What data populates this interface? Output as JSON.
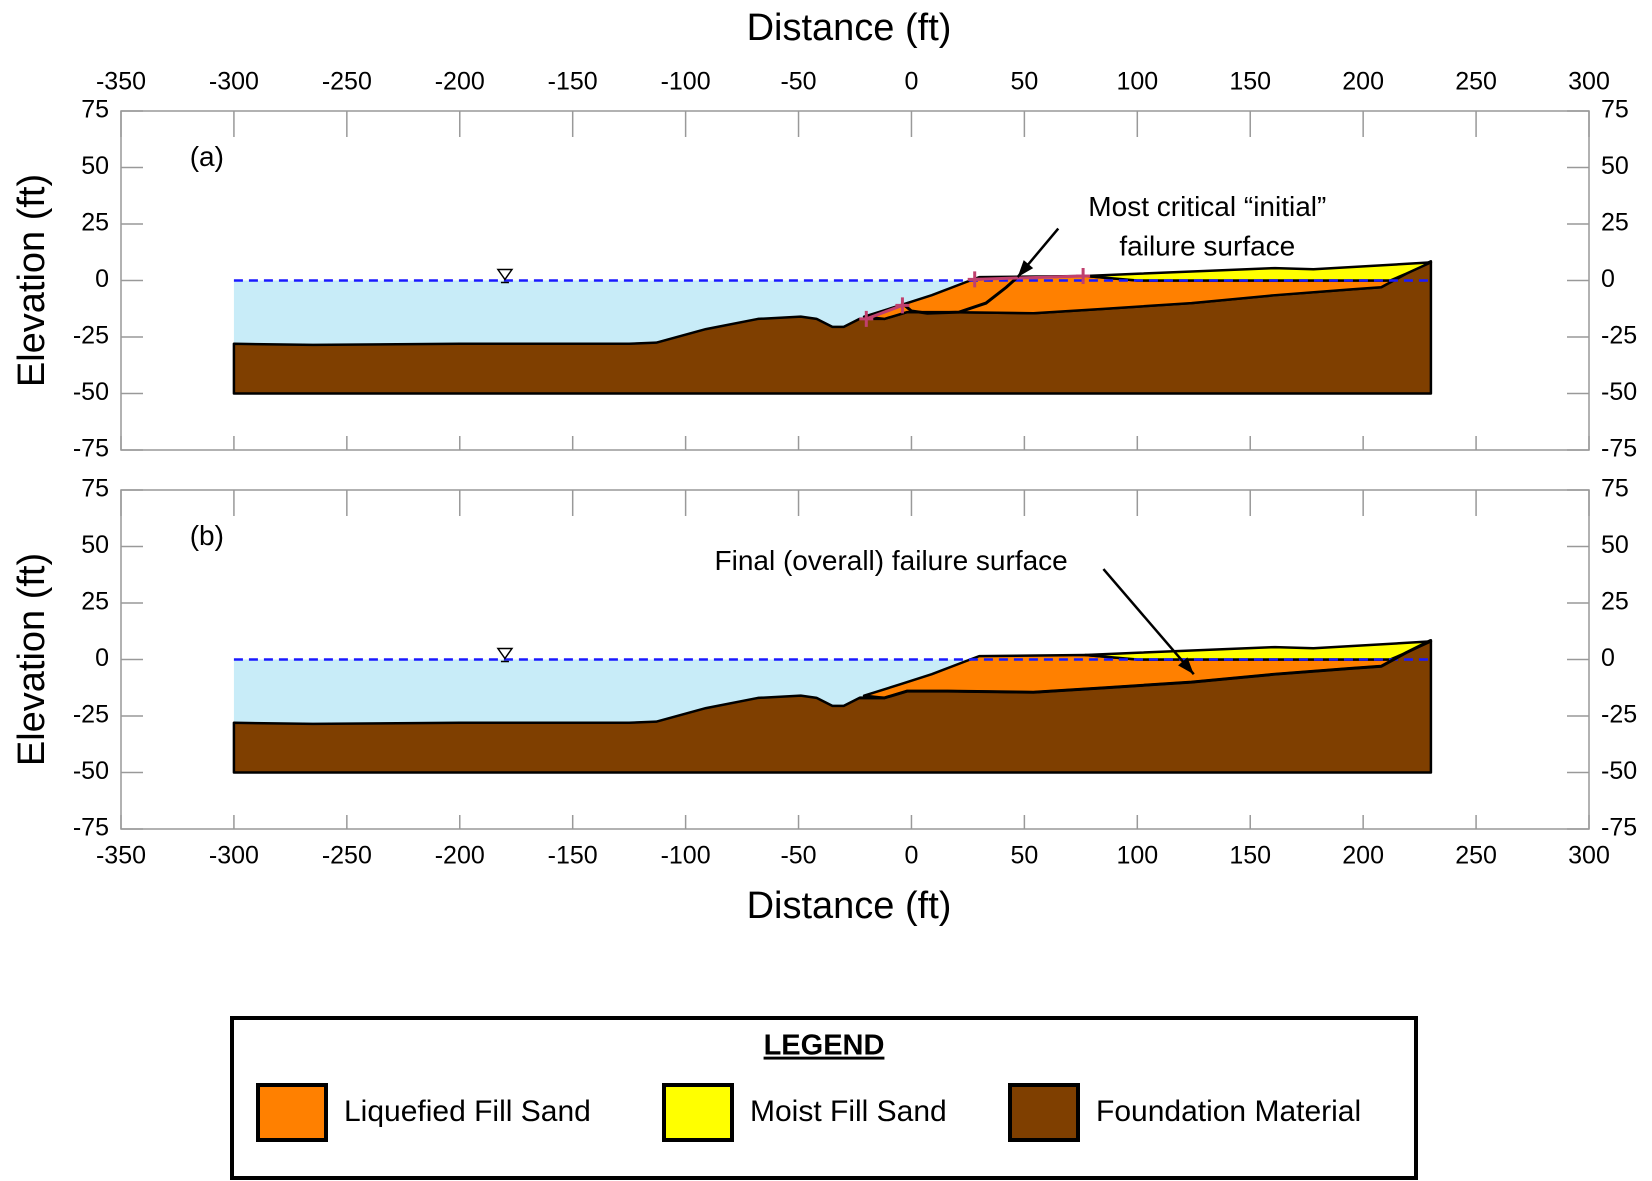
{
  "chart_data": [
    {
      "type": "area",
      "panel_label": "(a)",
      "x_label": "Distance (ft)",
      "x_axis": "top",
      "y_label": "Elevation (ft)",
      "xlim": [
        -350,
        300
      ],
      "xticks": [
        -350,
        -300,
        -250,
        -200,
        -150,
        -100,
        -50,
        0,
        50,
        100,
        150,
        200,
        250,
        300
      ],
      "ylim": [
        -75,
        75
      ],
      "yticks": [
        75,
        50,
        25,
        0,
        -25,
        -50,
        -75
      ],
      "annotation": [
        "Most critical “initial”",
        "failure surface"
      ],
      "series": [
        {
          "type": "polygon",
          "color": "#c8ecf8",
          "x": [
            -300,
            26,
            9,
            -5,
            -21,
            -23,
            -30,
            -35,
            -42,
            -49,
            -68,
            -91,
            -113,
            -125,
            -200,
            -265,
            -300
          ],
          "values": [
            0,
            0,
            -6.5,
            -11,
            -16,
            -17,
            -20.5,
            -20.5,
            -17,
            -16,
            -17,
            -21.5,
            -27.5,
            -28,
            -28,
            -28.5,
            -28
          ]
        },
        {
          "type": "polygon",
          "name": "Foundation Material",
          "color": "#7f3f00",
          "x": [
            -300,
            -265,
            -200,
            -125,
            -113,
            -91,
            -68,
            -49,
            -42,
            -35,
            -30,
            -23,
            -12,
            -2,
            16,
            54,
            86,
            124,
            161,
            194,
            208,
            219,
            230,
            230,
            -300
          ],
          "values": [
            -28,
            -28.5,
            -28,
            -28,
            -27.5,
            -21.5,
            -17,
            -16,
            -17,
            -20.5,
            -20.5,
            -17,
            -17,
            -14,
            -14,
            -14.5,
            -12.5,
            -10,
            -6.5,
            -4,
            -3,
            3,
            8.5,
            -50,
            -50
          ]
        },
        {
          "type": "polygon",
          "name": "Liquefied Fill Sand",
          "color": "#ff8000",
          "x": [
            -21,
            -5,
            9,
            26,
            30,
            77,
            100,
            212,
            219,
            208,
            194,
            161,
            124,
            86,
            54,
            16,
            -2,
            -12
          ],
          "values": [
            -16,
            -11,
            -6.5,
            0,
            1.5,
            2,
            0,
            0,
            3,
            -3,
            -4,
            -6.5,
            -10,
            -12.5,
            -14.5,
            -14,
            -14,
            -17
          ]
        },
        {
          "type": "polygon",
          "name": "Moist Fill Sand",
          "color": "#ffff00",
          "x": [
            77,
            100,
            161,
            178,
            230,
            219,
            212,
            100
          ],
          "values": [
            2,
            3,
            5.5,
            5,
            8,
            3,
            0,
            0
          ]
        },
        {
          "type": "line",
          "color": "#1a1aff",
          "dash": true,
          "x": [
            -300,
            230
          ],
          "values": [
            0,
            0
          ]
        },
        {
          "type": "line",
          "color": "#000000",
          "x": [
            -3,
            0,
            7,
            21,
            33,
            42,
            47
          ],
          "values": [
            -11,
            -13.5,
            -14.5,
            -14,
            -10,
            -3,
            1.5
          ]
        },
        {
          "type": "line",
          "color": "#c0406e",
          "markers": true,
          "x": [
            -20,
            -4,
            null,
            28,
            76
          ],
          "values": [
            -17,
            -11,
            null,
            0.5,
            2
          ]
        }
      ]
    },
    {
      "type": "area",
      "panel_label": "(b)",
      "x_label": "Distance (ft)",
      "x_axis": "bottom",
      "y_label": "Elevation (ft)",
      "xlim": [
        -350,
        300
      ],
      "xticks": [
        -350,
        -300,
        -250,
        -200,
        -150,
        -100,
        -50,
        0,
        50,
        100,
        150,
        200,
        250,
        300
      ],
      "ylim": [
        -75,
        75
      ],
      "yticks": [
        75,
        50,
        25,
        0,
        -25,
        -50,
        -75
      ],
      "annotation": [
        "Final (overall) failure surface"
      ],
      "series": [
        {
          "type": "polygon",
          "color": "#c8ecf8",
          "x": [
            -300,
            26,
            9,
            -5,
            -21,
            -23,
            -30,
            -35,
            -42,
            -49,
            -68,
            -91,
            -113,
            -125,
            -200,
            -265,
            -300
          ],
          "values": [
            0,
            0,
            -6.5,
            -11,
            -16,
            -17,
            -20.5,
            -20.5,
            -17,
            -16,
            -17,
            -21.5,
            -27.5,
            -28,
            -28,
            -28.5,
            -28
          ]
        },
        {
          "type": "polygon",
          "name": "Foundation Material",
          "color": "#7f3f00",
          "x": [
            -300,
            -265,
            -200,
            -125,
            -113,
            -91,
            -68,
            -49,
            -42,
            -35,
            -30,
            -23,
            -12,
            -2,
            16,
            54,
            86,
            124,
            161,
            194,
            208,
            219,
            230,
            230,
            -300
          ],
          "values": [
            -28,
            -28.5,
            -28,
            -28,
            -27.5,
            -21.5,
            -17,
            -16,
            -17,
            -20.5,
            -20.5,
            -17,
            -17,
            -14,
            -14,
            -14.5,
            -12.5,
            -10,
            -6.5,
            -4,
            -3,
            3,
            8.5,
            -50,
            -50
          ]
        },
        {
          "type": "polygon",
          "name": "Liquefied Fill Sand",
          "color": "#ff8000",
          "x": [
            -21,
            -5,
            9,
            26,
            30,
            77,
            100,
            212,
            219,
            208,
            194,
            161,
            124,
            86,
            54,
            16,
            -2,
            -12
          ],
          "values": [
            -16,
            -11,
            -6.5,
            0,
            1.5,
            2,
            0,
            0,
            3,
            -3,
            -4,
            -6.5,
            -10,
            -12.5,
            -14.5,
            -14,
            -14,
            -17
          ]
        },
        {
          "type": "polygon",
          "name": "Moist Fill Sand",
          "color": "#ffff00",
          "x": [
            77,
            100,
            161,
            178,
            230,
            219,
            212,
            100
          ],
          "values": [
            2,
            3,
            5.5,
            5,
            8,
            3,
            0,
            0
          ]
        },
        {
          "type": "line",
          "color": "#1a1aff",
          "dash": true,
          "x": [
            -300,
            230
          ],
          "values": [
            0,
            0
          ]
        },
        {
          "type": "line",
          "color": "#000000",
          "x": [
            -23,
            -12,
            -2,
            16,
            54,
            86,
            124,
            161,
            194,
            208,
            219,
            230
          ],
          "values": [
            -17,
            -17,
            -14,
            -14,
            -14.5,
            -12.5,
            -10,
            -6.5,
            -4,
            -3,
            3,
            8.5
          ]
        }
      ]
    }
  ],
  "legend": {
    "title": "LEGEND"
  }
}
